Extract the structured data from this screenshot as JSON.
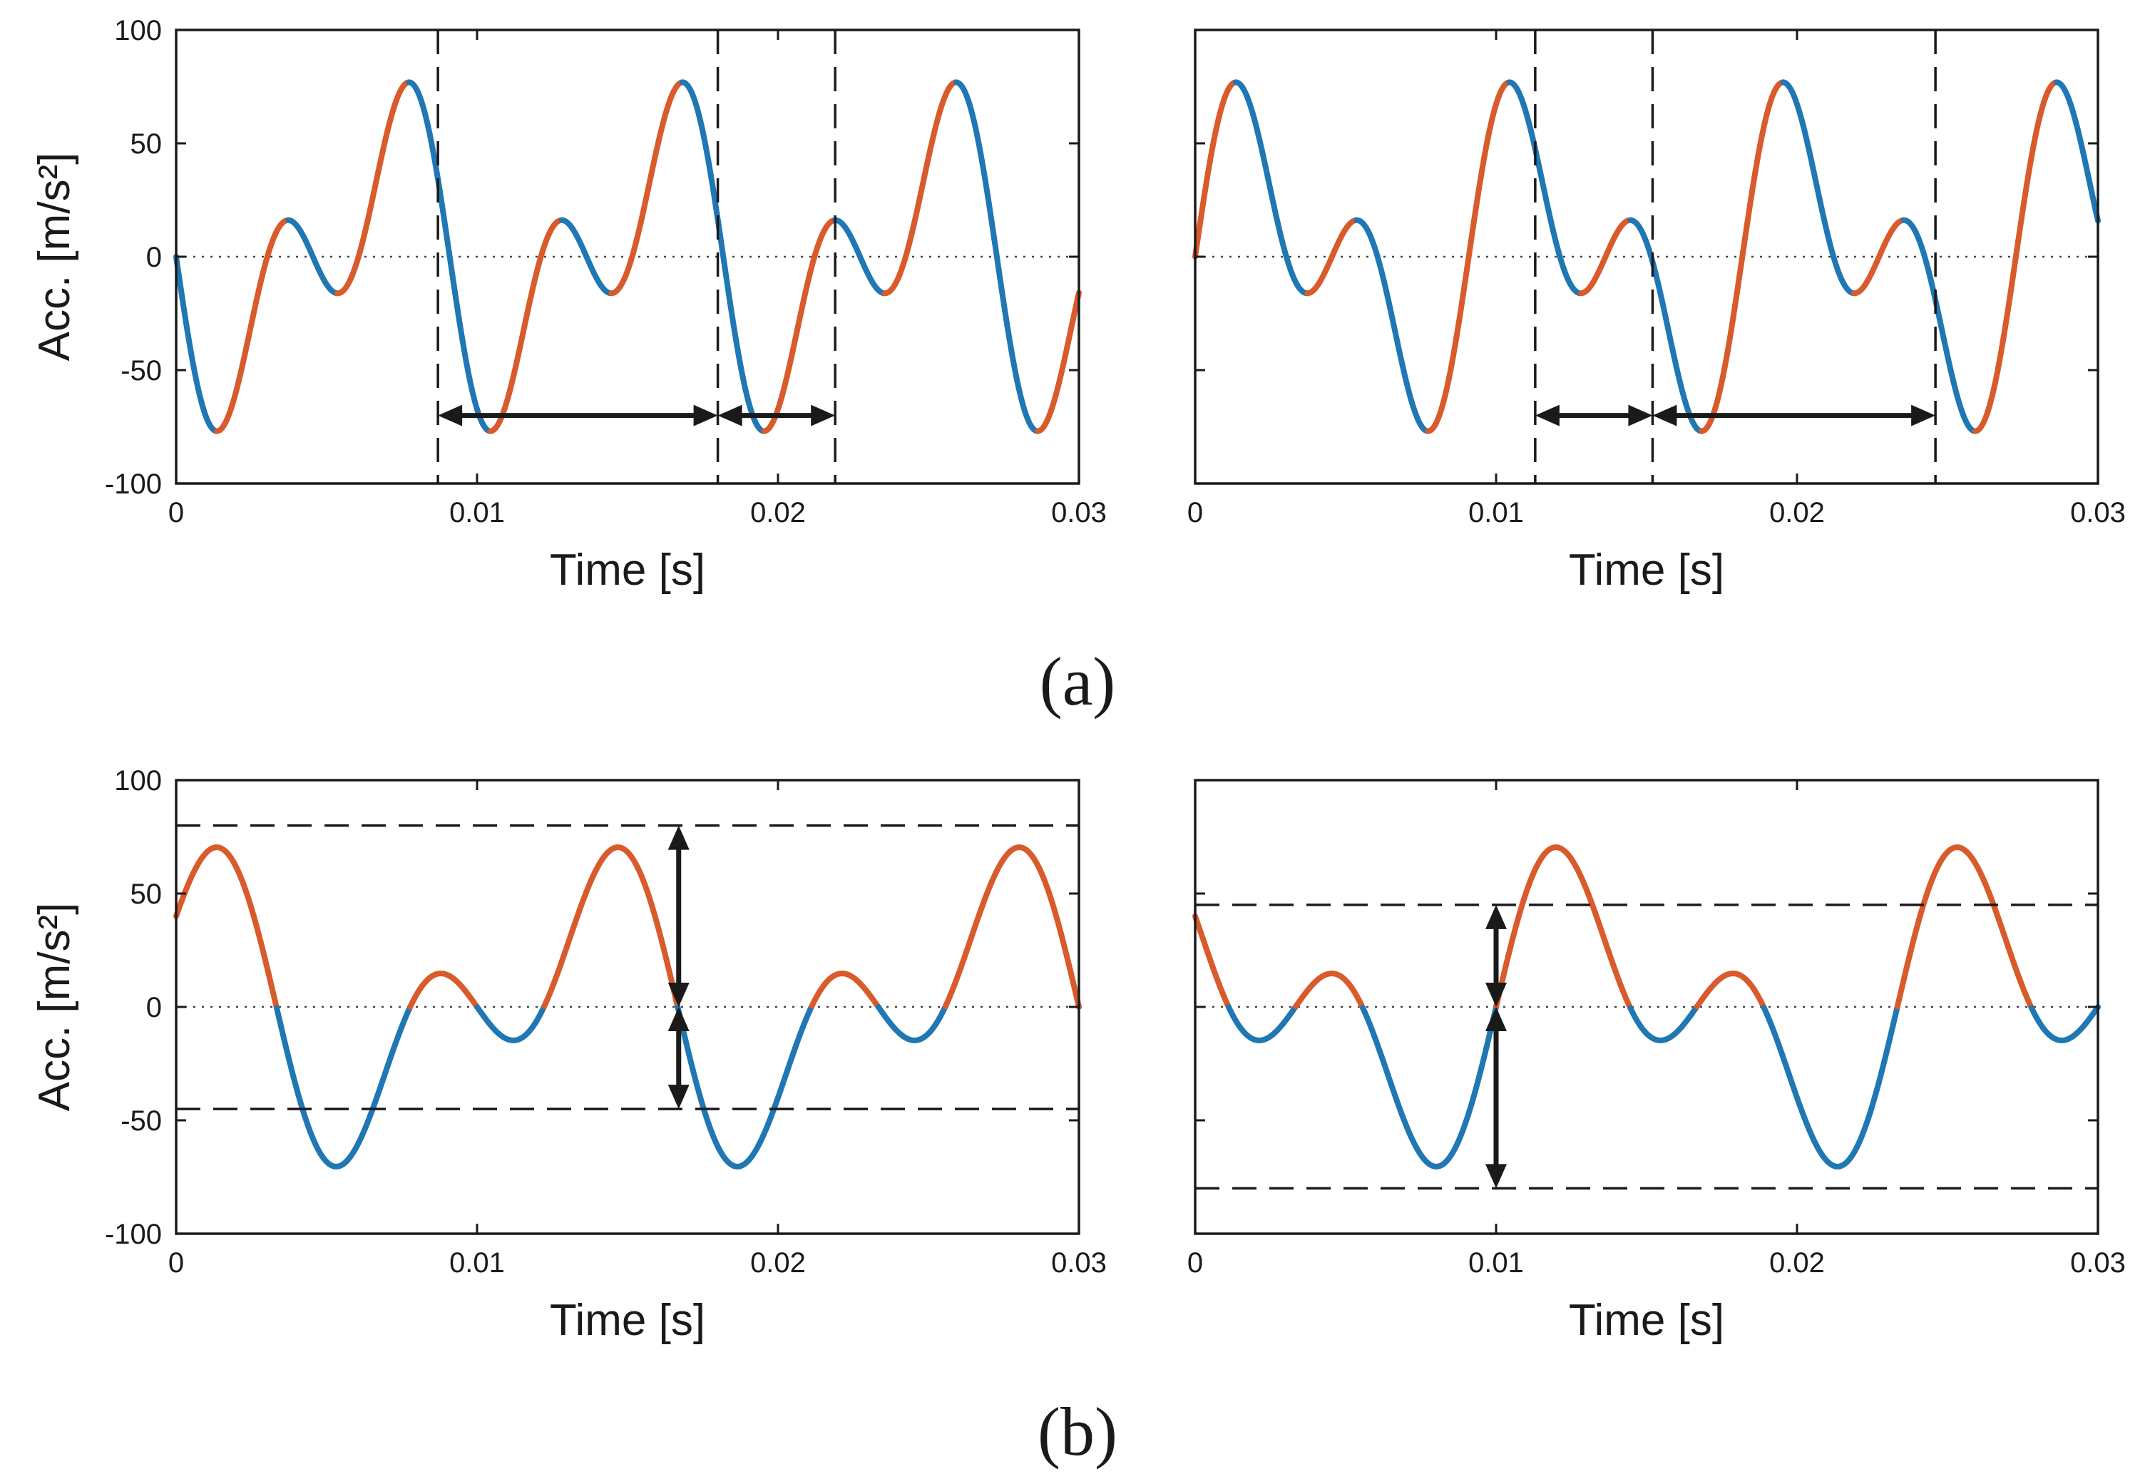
{
  "chart_data": [
    {
      "id": "a-left",
      "type": "line",
      "xlabel": "Time [s]",
      "ylabel": "Acc. [m/s²]",
      "xlim": [
        0,
        0.03
      ],
      "ylim": [
        -100,
        100
      ],
      "xticks": [
        0,
        0.01,
        0.02,
        0.03
      ],
      "xtick_labels": [
        "0",
        "0.01",
        "0.02",
        "0.03"
      ],
      "yticks": [
        100,
        50,
        0,
        -50,
        -100
      ],
      "ytick_labels": [
        "100",
        "50",
        "0",
        "-50",
        "-100"
      ],
      "show_yticklabels": true,
      "show_ylabel": true,
      "signal": {
        "components": [
          {
            "amp": 43.7,
            "freq": 110,
            "phase_deg": 180
          },
          {
            "amp": 43.7,
            "freq": 220,
            "phase_deg": 180
          }
        ]
      },
      "series": [
        {
          "name": "rising",
          "color": "#d95a2b"
        },
        {
          "name": "falling",
          "color": "#1f77b4"
        }
      ],
      "vlines": [
        0.0087,
        0.018,
        0.0219
      ],
      "hlines": [],
      "arrows": [
        {
          "orientation": "horizontal",
          "y": -70,
          "from": 0.0087,
          "to": 0.018
        },
        {
          "orientation": "horizontal",
          "y": -70,
          "from": 0.018,
          "to": 0.0219
        }
      ]
    },
    {
      "id": "a-right",
      "type": "line",
      "xlabel": "Time [s]",
      "ylabel": "",
      "xlim": [
        0,
        0.03
      ],
      "ylim": [
        -100,
        100
      ],
      "xticks": [
        0,
        0.01,
        0.02,
        0.03
      ],
      "xtick_labels": [
        "0",
        "0.01",
        "0.02",
        "0.03"
      ],
      "yticks": [
        100,
        50,
        0,
        -50,
        -100
      ],
      "ytick_labels": [],
      "show_yticklabels": false,
      "show_ylabel": false,
      "signal": {
        "components": [
          {
            "amp": 43.7,
            "freq": 110,
            "phase_deg": 0
          },
          {
            "amp": 43.7,
            "freq": 220,
            "phase_deg": 0
          }
        ]
      },
      "series": [
        {
          "name": "rising",
          "color": "#d95a2b"
        },
        {
          "name": "falling",
          "color": "#1f77b4"
        }
      ],
      "vlines": [
        0.0113,
        0.0152,
        0.0246
      ],
      "hlines": [],
      "arrows": [
        {
          "orientation": "horizontal",
          "y": -70,
          "from": 0.0113,
          "to": 0.0152
        },
        {
          "orientation": "horizontal",
          "y": -70,
          "from": 0.0152,
          "to": 0.0246
        }
      ]
    },
    {
      "id": "b-left",
      "type": "line",
      "xlabel": "Time [s]",
      "ylabel": "Acc. [m/s²]",
      "xlim": [
        0,
        0.03
      ],
      "ylim": [
        -100,
        100
      ],
      "xticks": [
        0,
        0.01,
        0.02,
        0.03
      ],
      "xtick_labels": [
        "0",
        "0.01",
        "0.02",
        "0.03"
      ],
      "yticks": [
        100,
        50,
        0,
        -50,
        -100
      ],
      "ytick_labels": [
        "100",
        "50",
        "0",
        "-50",
        "-100"
      ],
      "show_yticklabels": true,
      "show_ylabel": true,
      "signal": {
        "components": [
          {
            "amp": 40,
            "freq": 75,
            "phase_deg": 90
          },
          {
            "amp": 40,
            "freq": 150,
            "phase_deg": 0
          }
        ]
      },
      "series": [
        {
          "name": "positive",
          "color": "#d95a2b"
        },
        {
          "name": "negative",
          "color": "#1f77b4"
        }
      ],
      "vlines": [],
      "hlines": [
        80,
        -45
      ],
      "arrows": [
        {
          "orientation": "vertical",
          "x": 0.0167,
          "from": 0,
          "to": 80
        },
        {
          "orientation": "vertical",
          "x": 0.0167,
          "from": 0,
          "to": -45
        }
      ]
    },
    {
      "id": "b-right",
      "type": "line",
      "xlabel": "Time [s]",
      "ylabel": "",
      "xlim": [
        0,
        0.03
      ],
      "ylim": [
        -100,
        100
      ],
      "xticks": [
        0,
        0.01,
        0.02,
        0.03
      ],
      "xtick_labels": [
        "0",
        "0.01",
        "0.02",
        "0.03"
      ],
      "yticks": [
        100,
        50,
        0,
        -50,
        -100
      ],
      "ytick_labels": [],
      "show_yticklabels": false,
      "show_ylabel": false,
      "signal": {
        "components": [
          {
            "amp": 40,
            "freq": 75,
            "phase_deg": 90
          },
          {
            "amp": 40,
            "freq": 150,
            "phase_deg": 180
          }
        ]
      },
      "series": [
        {
          "name": "positive",
          "color": "#d95a2b"
        },
        {
          "name": "negative",
          "color": "#1f77b4"
        }
      ],
      "vlines": [],
      "hlines": [
        45,
        -80
      ],
      "arrows": [
        {
          "orientation": "vertical",
          "x": 0.01,
          "from": 0,
          "to": 45
        },
        {
          "orientation": "vertical",
          "x": 0.01,
          "from": 0,
          "to": -80
        }
      ]
    }
  ],
  "panel_labels": {
    "a": "(a)",
    "b": "(b)"
  }
}
